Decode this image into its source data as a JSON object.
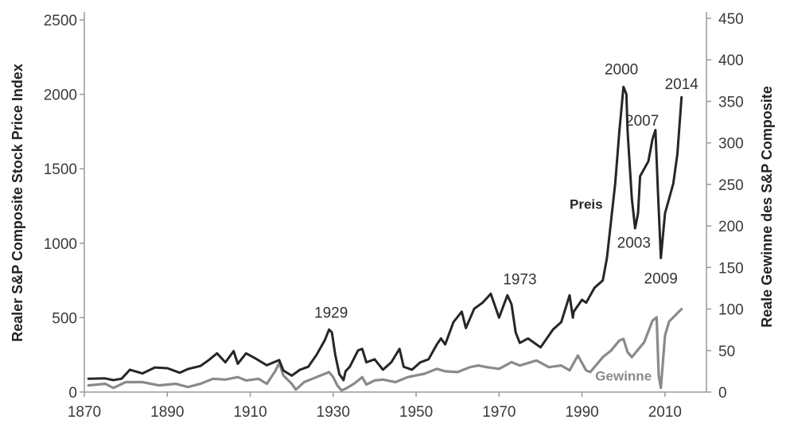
{
  "chart_data": {
    "type": "line",
    "title": "",
    "xlabel": "",
    "ylabel_left": "Realer S&P Composite Stock Price Index",
    "ylabel_right": "Reale Gewinne des S&P Composite",
    "xlim": [
      1870,
      2020
    ],
    "ylim_left": [
      0,
      2500
    ],
    "ylim_right": [
      0,
      450
    ],
    "x_ticks": [
      1870,
      1890,
      1910,
      1930,
      1950,
      1970,
      1990,
      2010
    ],
    "y_ticks_left": [
      0,
      500,
      1000,
      1500,
      2000,
      2500
    ],
    "y_ticks_right": [
      0,
      50,
      100,
      150,
      200,
      250,
      300,
      350,
      400,
      450
    ],
    "grid": false,
    "annotations": [
      {
        "text": "1929",
        "x": 1929.5,
        "y": 500
      },
      {
        "text": "1973",
        "x": 1975,
        "y": 725
      },
      {
        "text": "2000",
        "x": 1999.5,
        "y": 2135
      },
      {
        "text": "2003",
        "x": 2002.5,
        "y": 970
      },
      {
        "text": "2007",
        "x": 2004.5,
        "y": 1790
      },
      {
        "text": "2009",
        "x": 2009,
        "y": 730
      },
      {
        "text": "2014",
        "x": 2014,
        "y": 2035
      }
    ],
    "series": [
      {
        "name": "Preis",
        "axis": "left",
        "color": "#262626",
        "label_pos": {
          "x": 1991,
          "y": 1230
        },
        "x": [
          1871,
          1875,
          1877,
          1879,
          1881,
          1884,
          1887,
          1890,
          1893,
          1895,
          1898,
          1900,
          1902,
          1904,
          1906,
          1907,
          1909,
          1911,
          1914,
          1917,
          1918,
          1920,
          1922,
          1924,
          1926,
          1927,
          1928,
          1929,
          1929.7,
          1930.5,
          1931.5,
          1932.5,
          1933,
          1934,
          1936,
          1937,
          1938,
          1940,
          1942,
          1944,
          1946,
          1947,
          1949,
          1951,
          1953,
          1955,
          1956,
          1957,
          1959,
          1961,
          1962,
          1964,
          1966,
          1967,
          1968,
          1970,
          1972,
          1973,
          1974,
          1975,
          1977,
          1980,
          1982,
          1983,
          1985,
          1987,
          1987.8,
          1988,
          1990,
          1991,
          1993,
          1995,
          1996,
          1997,
          1998,
          1999,
          2000,
          2000.7,
          2001,
          2002,
          2002.8,
          2003.5,
          2004,
          2005,
          2006,
          2007,
          2007.7,
          2008.3,
          2009,
          2009.5,
          2010,
          2011,
          2012,
          2013,
          2014
        ],
        "values": [
          90,
          92,
          80,
          90,
          150,
          125,
          165,
          160,
          130,
          155,
          175,
          215,
          260,
          200,
          275,
          190,
          260,
          230,
          180,
          215,
          145,
          110,
          150,
          170,
          250,
          300,
          350,
          420,
          400,
          250,
          120,
          80,
          140,
          170,
          280,
          290,
          200,
          220,
          150,
          200,
          290,
          170,
          150,
          200,
          220,
          320,
          360,
          320,
          470,
          540,
          430,
          560,
          600,
          630,
          660,
          500,
          650,
          590,
          400,
          330,
          360,
          300,
          380,
          420,
          470,
          650,
          500,
          540,
          620,
          600,
          700,
          750,
          900,
          1150,
          1400,
          1750,
          2050,
          2000,
          1750,
          1300,
          1100,
          1200,
          1450,
          1500,
          1550,
          1700,
          1760,
          1350,
          900,
          1050,
          1200,
          1300,
          1400,
          1600,
          1980
        ]
      },
      {
        "name": "Gewinne",
        "axis": "right",
        "color": "#8a8a8a",
        "label_pos": {
          "x": 2000,
          "y": 14
        },
        "x": [
          1871,
          1875,
          1877,
          1880,
          1884,
          1888,
          1892,
          1895,
          1898,
          1901,
          1904,
          1907,
          1909,
          1912,
          1914,
          1916,
          1917,
          1918,
          1920,
          1921,
          1923,
          1926,
          1928,
          1929,
          1930,
          1931,
          1932,
          1933,
          1935,
          1937,
          1938,
          1940,
          1942,
          1945,
          1948,
          1950,
          1952,
          1955,
          1957,
          1960,
          1963,
          1965,
          1967,
          1970,
          1973,
          1975,
          1979,
          1982,
          1985,
          1987,
          1989,
          1991,
          1992,
          1995,
          1997,
          1999,
          2000,
          2001,
          2002,
          2003,
          2005,
          2007,
          2008,
          2008.5,
          2009,
          2010,
          2011,
          2012,
          2013,
          2014
        ],
        "values": [
          8,
          10,
          5,
          12,
          12,
          8,
          10,
          6,
          10,
          16,
          15,
          18,
          14,
          16,
          10,
          25,
          35,
          20,
          10,
          3,
          12,
          18,
          22,
          24,
          18,
          8,
          2,
          4,
          10,
          18,
          9,
          14,
          15,
          12,
          18,
          20,
          22,
          28,
          25,
          24,
          30,
          32,
          30,
          28,
          36,
          32,
          38,
          30,
          32,
          26,
          44,
          26,
          24,
          42,
          50,
          62,
          64,
          48,
          42,
          48,
          60,
          86,
          90,
          20,
          5,
          68,
          85,
          90,
          95,
          100
        ]
      }
    ]
  }
}
